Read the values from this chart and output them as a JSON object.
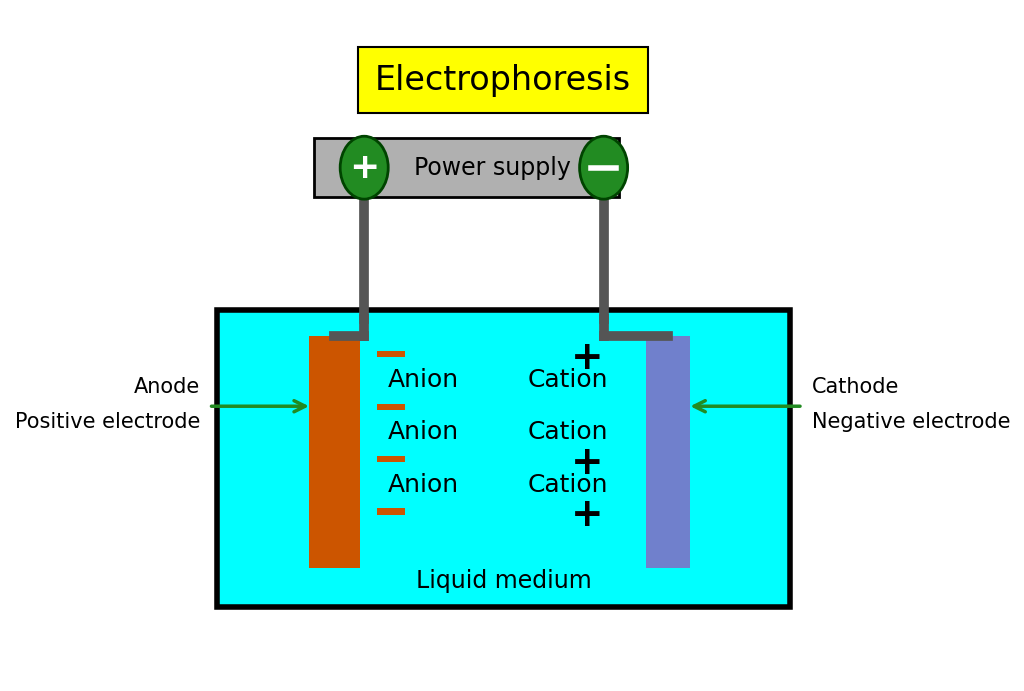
{
  "title": "Electrophoresis",
  "title_bg": "#ffff00",
  "title_fontsize": 24,
  "power_supply_label": "Power supply",
  "power_supply_color": "#b0b0b0",
  "wire_color": "#555555",
  "tank_fill": "#00ffff",
  "tank_border": "#000000",
  "anode_color": "#cc5500",
  "cathode_color": "#7080cc",
  "liquid_medium_label": "Liquid medium",
  "anion_label": "Anion",
  "cation_label": "Cation",
  "anode_label_1": "Anode",
  "anode_label_2": "Positive electrode",
  "cathode_label_1": "Cathode",
  "cathode_label_2": "Negative electrode",
  "terminal_green": "#228B22",
  "minus_bar_color": "#cc5500",
  "plus_color": "#000000",
  "white": "#ffffff",
  "label_fontsize": 15,
  "anion_cation_fontsize": 18,
  "plus_minus_inner_fontsize": 22
}
